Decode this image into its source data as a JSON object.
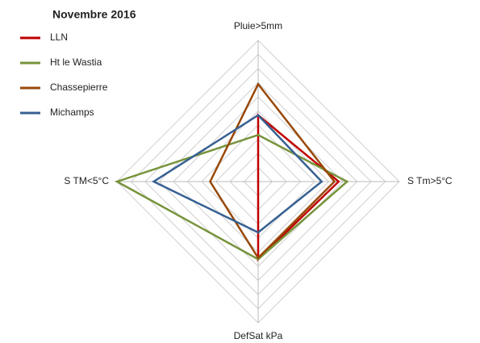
{
  "chart_data": {
    "type": "radar",
    "title": "Novembre  2016",
    "categories": [
      "Pluie>5mm",
      "S Tm>5°C",
      "DefSat kPa",
      "S TM<5°C"
    ],
    "series": [
      {
        "name": "LLN",
        "color": "#c00000",
        "values": [
          4.7,
          5.7,
          5.5,
          0
        ]
      },
      {
        "name": "Ht le Wastia",
        "color": "#77933c",
        "values": [
          3.3,
          6.3,
          5.5,
          10
        ]
      },
      {
        "name": "Chassepierre",
        "color": "#984807",
        "values": [
          6.9,
          5.4,
          5.4,
          3.4
        ]
      },
      {
        "name": "Michamps",
        "color": "#376092",
        "values": [
          4.7,
          4.5,
          3.6,
          7.4
        ]
      }
    ],
    "rlim": [
      0,
      10
    ],
    "rticks": [
      0,
      1,
      2,
      3,
      4,
      5,
      6,
      7,
      8,
      9,
      10
    ],
    "grid": true,
    "legend": "top-left"
  }
}
